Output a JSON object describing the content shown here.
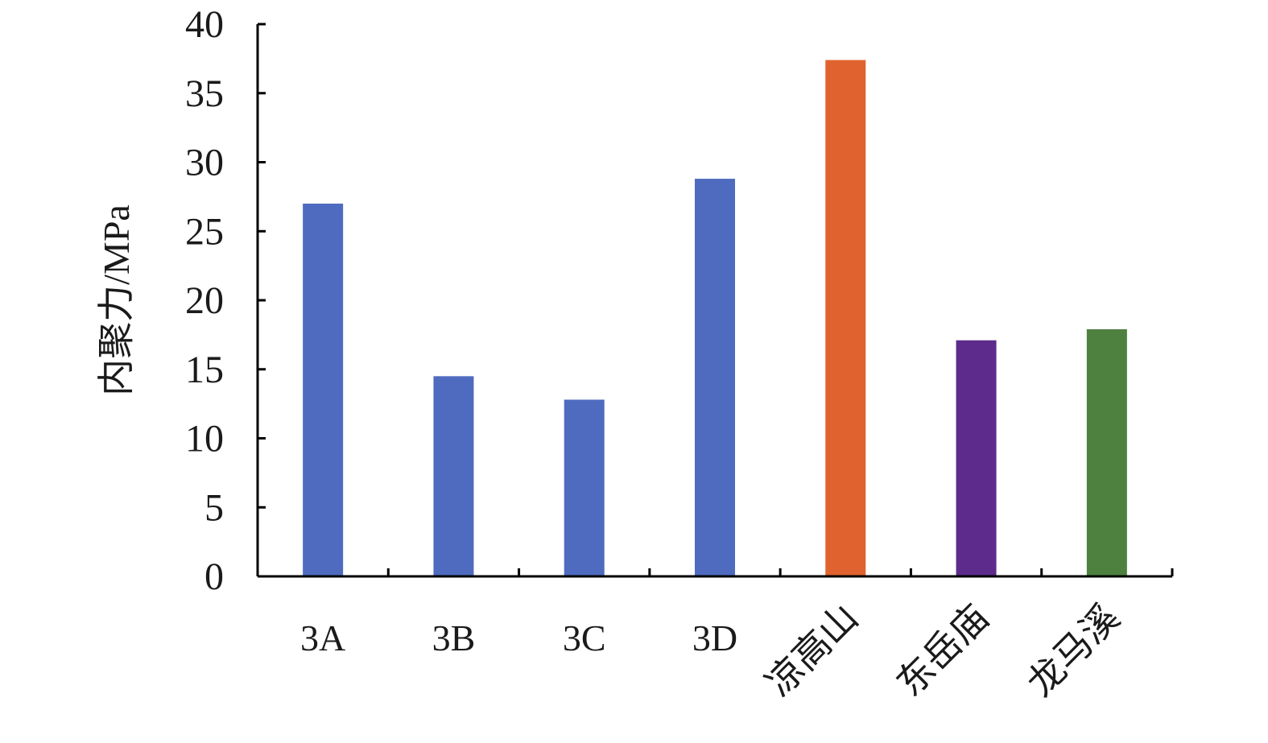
{
  "chart_data": {
    "type": "bar",
    "title": "",
    "xlabel": "",
    "ylabel": "内聚力/MPa",
    "ylim": [
      0,
      40
    ],
    "yticks": [
      0,
      5,
      10,
      15,
      20,
      25,
      30,
      35,
      40
    ],
    "grid": false,
    "categories": [
      "3A",
      "3B",
      "3C",
      "3D",
      "凉高山",
      "东岳庙",
      "龙马溪"
    ],
    "values": [
      27.0,
      14.5,
      12.8,
      28.8,
      37.4,
      17.1,
      17.9
    ],
    "colors": [
      "#4F6BBF",
      "#4F6BBF",
      "#4F6BBF",
      "#4F6BBF",
      "#E0622E",
      "#5C2B8C",
      "#4E8140"
    ]
  }
}
